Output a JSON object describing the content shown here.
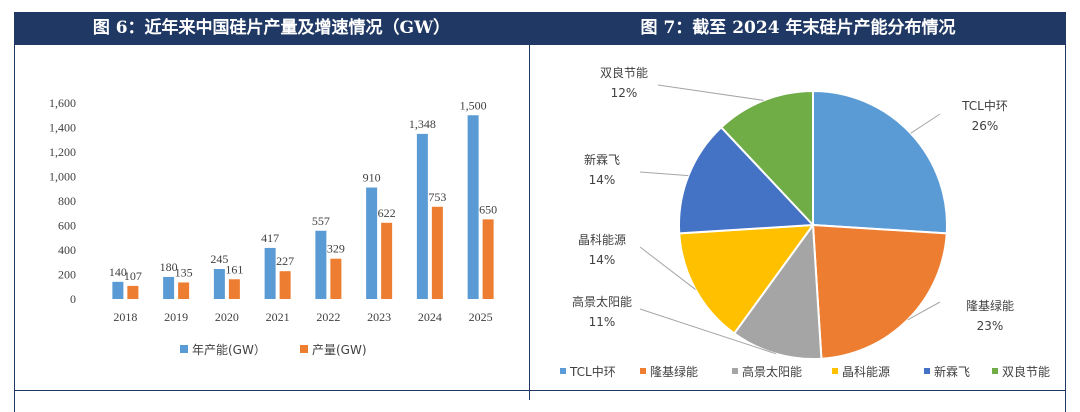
{
  "left_panel": {
    "header": "图 6：近年来中国硅片产量及增速情况（GW）"
  },
  "right_panel": {
    "header": "图 7：截至 2024 年末硅片产能分布情况"
  },
  "colors": {
    "header_bg": "#1f3864",
    "capacity_bar": "#5b9bd5",
    "production_bar": "#ed7d31"
  },
  "chart_data": [
    {
      "type": "bar",
      "title": "近年来中国硅片产量及增速情况（GW）",
      "categories": [
        "2018",
        "2019",
        "2020",
        "2021",
        "2022",
        "2023",
        "2024",
        "2025"
      ],
      "series": [
        {
          "name": "年产能(GW）",
          "color": "#5b9bd5",
          "values": [
            140,
            180,
            245,
            417,
            557,
            910,
            1348,
            1500
          ],
          "labels": [
            "140",
            "180",
            "245",
            "417",
            "557",
            "910",
            "1,348",
            "1,500"
          ]
        },
        {
          "name": "产量(GW)",
          "color": "#ed7d31",
          "values": [
            107,
            135,
            161,
            227,
            329,
            622,
            753,
            650
          ],
          "labels": [
            "107",
            "135",
            "161",
            "227",
            "329",
            "622",
            "753",
            "650"
          ]
        }
      ],
      "ylim": [
        0,
        1600
      ],
      "yticks": [
        0,
        200,
        400,
        600,
        800,
        1000,
        1200,
        1400,
        1600
      ],
      "ytick_labels": [
        "0",
        "200",
        "400",
        "600",
        "800",
        "1,000",
        "1,200",
        "1,400",
        "1,600"
      ],
      "xlabel": "",
      "ylabel": "",
      "legend_position": "bottom"
    },
    {
      "type": "pie",
      "title": "截至 2024 年末硅片产能分布情况",
      "slices": [
        {
          "name": "TCL中环",
          "value": 26,
          "label": "26%",
          "color": "#5b9bd5"
        },
        {
          "name": "隆基绿能",
          "value": 23,
          "label": "23%",
          "color": "#ed7d31"
        },
        {
          "name": "高景太阳能",
          "value": 11,
          "label": "11%",
          "color": "#a5a5a5"
        },
        {
          "name": "晶科能源",
          "value": 14,
          "label": "14%",
          "color": "#ffc000"
        },
        {
          "name": "新霖飞",
          "value": 14,
          "label": "14%",
          "color": "#4472c4"
        },
        {
          "name": "双良节能",
          "value": 12,
          "label": "12%",
          "color": "#70ad47"
        }
      ],
      "legend_position": "bottom"
    }
  ]
}
